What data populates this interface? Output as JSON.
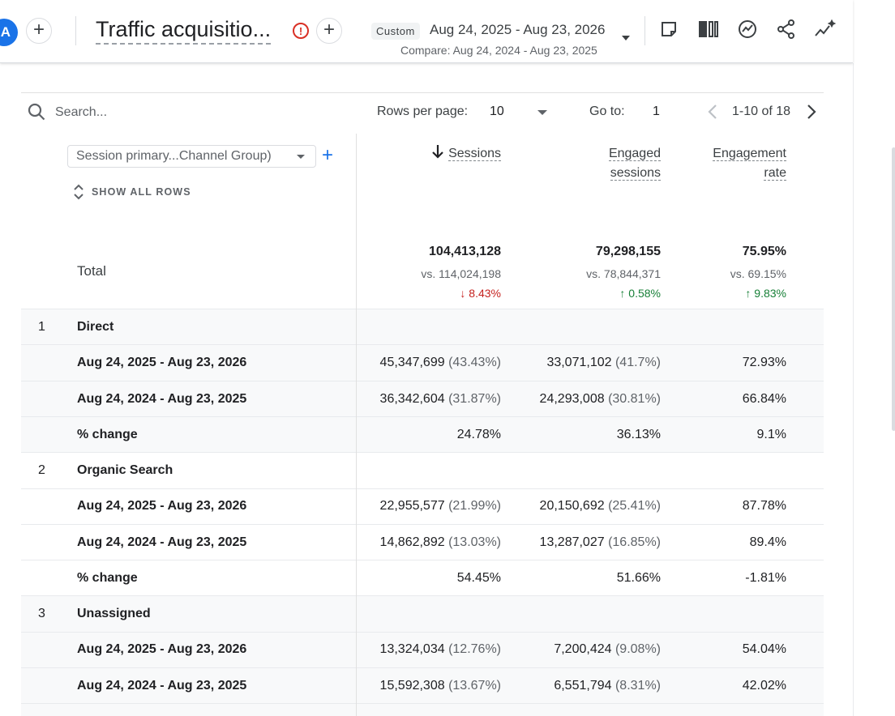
{
  "header": {
    "avatar_letter": "A",
    "report_title": "Traffic acquisitio...",
    "date_chip": "Custom",
    "date_range": "Aug 24, 2025 - Aug 23, 2026",
    "compare_range": "Compare: Aug 24, 2024 - Aug 23, 2025",
    "icons": [
      "add-icon",
      "alert-icon",
      "add-comparison-icon",
      "notes-icon",
      "compare-columns-icon",
      "insights-icon",
      "share-icon",
      "ai-sparkle-icon"
    ]
  },
  "toolbar": {
    "search_placeholder": "Search...",
    "rows_per_page_label": "Rows per page:",
    "rows_per_page_value": "10",
    "goto_label": "Go to:",
    "goto_value": "1",
    "pagination": "1-10 of 18"
  },
  "dimension": {
    "selected": "Session primary...Channel Group)",
    "show_all_rows": "SHOW ALL ROWS"
  },
  "columns": {
    "sessions": "Sessions",
    "engaged_1": "Engaged",
    "engaged_2": "sessions",
    "rate_1": "Engagement",
    "rate_2": "rate"
  },
  "totals": {
    "label": "Total",
    "sessions": "104,413,128",
    "sessions_vs": "vs. 114,024,198",
    "sessions_change": "↓ 8.43%",
    "engaged": "79,298,155",
    "engaged_vs": "vs. 78,844,371",
    "engaged_change": "↑ 0.58%",
    "rate": "75.95%",
    "rate_vs": "vs. 69.15%",
    "rate_change": "↑ 9.83%"
  },
  "groups": [
    {
      "index": "1",
      "name": "Direct",
      "current": {
        "label": "Aug 24, 2025 - Aug 23, 2026",
        "sessions": "45,347,699",
        "sessions_pct": "(43.43%)",
        "engaged": "33,071,102",
        "engaged_pct": "(41.7%)",
        "rate": "72.93%"
      },
      "previous": {
        "label": "Aug 24, 2024 - Aug 23, 2025",
        "sessions": "36,342,604",
        "sessions_pct": "(31.87%)",
        "engaged": "24,293,008",
        "engaged_pct": "(30.81%)",
        "rate": "66.84%"
      },
      "change": {
        "label": "% change",
        "sessions": "24.78%",
        "engaged": "36.13%",
        "rate": "9.1%"
      }
    },
    {
      "index": "2",
      "name": "Organic Search",
      "current": {
        "label": "Aug 24, 2025 - Aug 23, 2026",
        "sessions": "22,955,577",
        "sessions_pct": "(21.99%)",
        "engaged": "20,150,692",
        "engaged_pct": "(25.41%)",
        "rate": "87.78%"
      },
      "previous": {
        "label": "Aug 24, 2024 - Aug 23, 2025",
        "sessions": "14,862,892",
        "sessions_pct": "(13.03%)",
        "engaged": "13,287,027",
        "engaged_pct": "(16.85%)",
        "rate": "89.4%"
      },
      "change": {
        "label": "% change",
        "sessions": "54.45%",
        "engaged": "51.66%",
        "rate": "-1.81%"
      }
    },
    {
      "index": "3",
      "name": "Unassigned",
      "current": {
        "label": "Aug 24, 2025 - Aug 23, 2026",
        "sessions": "13,324,034",
        "sessions_pct": "(12.76%)",
        "engaged": "7,200,424",
        "engaged_pct": "(9.08%)",
        "rate": "54.04%"
      },
      "previous": {
        "label": "Aug 24, 2024 - Aug 23, 2025",
        "sessions": "15,592,308",
        "sessions_pct": "(13.67%)",
        "engaged": "6,551,794",
        "engaged_pct": "(8.31%)",
        "rate": "42.02%"
      }
    }
  ],
  "colors": {
    "accent": "#1a73e8",
    "negative": "#c5221f",
    "positive": "#188038",
    "row_shade": "#f8f9fa"
  }
}
